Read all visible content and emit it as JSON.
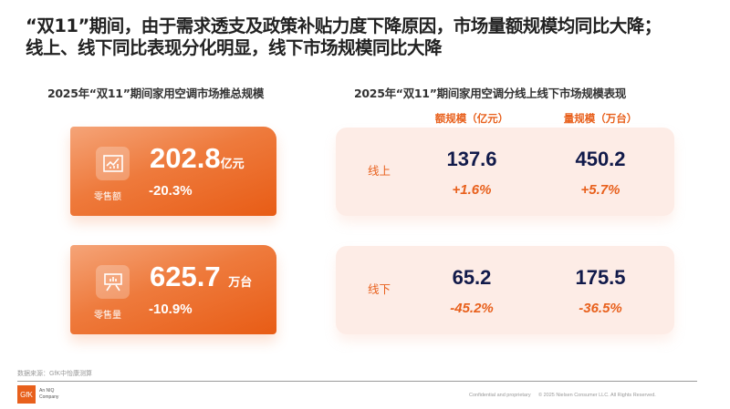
{
  "title": {
    "line1": "“双11”期间，由于需求透支及政策补贴力度下降原因，市场量额规模均同比大降；",
    "line2": "线上、线下同比表现分化明显，线下市场规模同比大降"
  },
  "left": {
    "heading": "2025年“双11”期间家用空调市场推总规模",
    "cards": [
      {
        "label": "零售额",
        "value": "202.8",
        "unit": "亿元",
        "change": "-20.3%",
        "icon": "line-chart-icon"
      },
      {
        "label": "零售量",
        "value": "625.7",
        "unit": "万台",
        "change": "-10.9%",
        "icon": "presentation-board-icon"
      }
    ]
  },
  "right": {
    "heading": "2025年“双11”期间家用空调分线上线下市场规模表现",
    "columns": [
      "额规模（亿元）",
      "量规模（万台）"
    ],
    "rows": [
      {
        "label": "线上",
        "amount": "137.6",
        "amount_change": "+1.6%",
        "volume": "450.2",
        "volume_change": "+5.7%"
      },
      {
        "label": "线下",
        "amount": "65.2",
        "amount_change": "-45.2%",
        "volume": "175.5",
        "volume_change": "-36.5%"
      }
    ]
  },
  "footer": {
    "source": "数据来源：GfK中怡康测算",
    "logo": "GfK",
    "logo_tag": "An NIQ Company",
    "confidential": "Confidential and proprietary",
    "copyright": "© 2025 Nielsen Consumer LLC. All Rights Reserved."
  },
  "colors": {
    "accent": "#e8601c",
    "number": "#111a4a",
    "panel": "#fdece6"
  }
}
